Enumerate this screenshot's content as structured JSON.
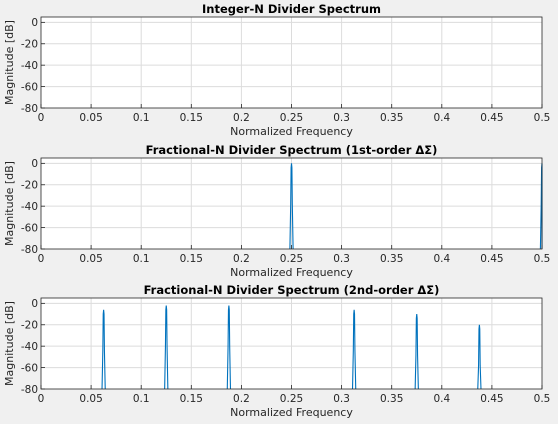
{
  "colors": {
    "figure_bg": "#f0f0f0",
    "axes_bg": "#ffffff",
    "grid": "#dcdcdc",
    "axis": "#262626",
    "series": "#0072bd"
  },
  "chart_data": [
    {
      "type": "line",
      "title": "Integer-N Divider Spectrum",
      "xlabel": "Normalized Frequency",
      "ylabel": "Magnitude [dB]",
      "xlim": [
        0,
        0.5
      ],
      "ylim": [
        -80,
        5
      ],
      "grid": true,
      "xticks": [
        0,
        0.05,
        0.1,
        0.15,
        0.2,
        0.25,
        0.3,
        0.35,
        0.4,
        0.45,
        0.5
      ],
      "xtick_labels": [
        "0",
        "0.05",
        "0.1",
        "0.15",
        "0.2",
        "0.25",
        "0.3",
        "0.35",
        "0.4",
        "0.45",
        "0.5"
      ],
      "yticks": [
        0,
        -20,
        -40,
        -60,
        -80
      ],
      "ytick_labels": [
        "0",
        "-20",
        "-40",
        "-60",
        "-80"
      ],
      "peaks": []
    },
    {
      "type": "line",
      "title": "Fractional-N Divider Spectrum (1st-order ΔΣ)",
      "xlabel": "Normalized Frequency",
      "ylabel": "Magnitude [dB]",
      "xlim": [
        0,
        0.5
      ],
      "ylim": [
        -80,
        5
      ],
      "grid": true,
      "xticks": [
        0,
        0.05,
        0.1,
        0.15,
        0.2,
        0.25,
        0.3,
        0.35,
        0.4,
        0.45,
        0.5
      ],
      "xtick_labels": [
        "0",
        "0.05",
        "0.1",
        "0.15",
        "0.2",
        "0.25",
        "0.3",
        "0.35",
        "0.4",
        "0.45",
        "0.5"
      ],
      "yticks": [
        0,
        -20,
        -40,
        -60,
        -80
      ],
      "ytick_labels": [
        "0",
        "-20",
        "-40",
        "-60",
        "-80"
      ],
      "peaks": [
        {
          "x": 0.25,
          "y": 0
        },
        {
          "x": 0.5,
          "y": 0
        }
      ]
    },
    {
      "type": "line",
      "title": "Fractional-N Divider Spectrum (2nd-order ΔΣ)",
      "xlabel": "Normalized Frequency",
      "ylabel": "Magnitude [dB]",
      "xlim": [
        0,
        0.5
      ],
      "ylim": [
        -80,
        5
      ],
      "grid": true,
      "xticks": [
        0,
        0.05,
        0.1,
        0.15,
        0.2,
        0.25,
        0.3,
        0.35,
        0.4,
        0.45,
        0.5
      ],
      "xtick_labels": [
        "0",
        "0.05",
        "0.1",
        "0.15",
        "0.2",
        "0.25",
        "0.3",
        "0.35",
        "0.4",
        "0.45",
        "0.5"
      ],
      "yticks": [
        0,
        -20,
        -40,
        -60,
        -80
      ],
      "ytick_labels": [
        "0",
        "-20",
        "-40",
        "-60",
        "-80"
      ],
      "peaks": [
        {
          "x": 0.0625,
          "y": -6
        },
        {
          "x": 0.125,
          "y": -2
        },
        {
          "x": 0.1875,
          "y": -2
        },
        {
          "x": 0.3125,
          "y": -6
        },
        {
          "x": 0.375,
          "y": -10
        },
        {
          "x": 0.4375,
          "y": -20
        }
      ]
    }
  ]
}
